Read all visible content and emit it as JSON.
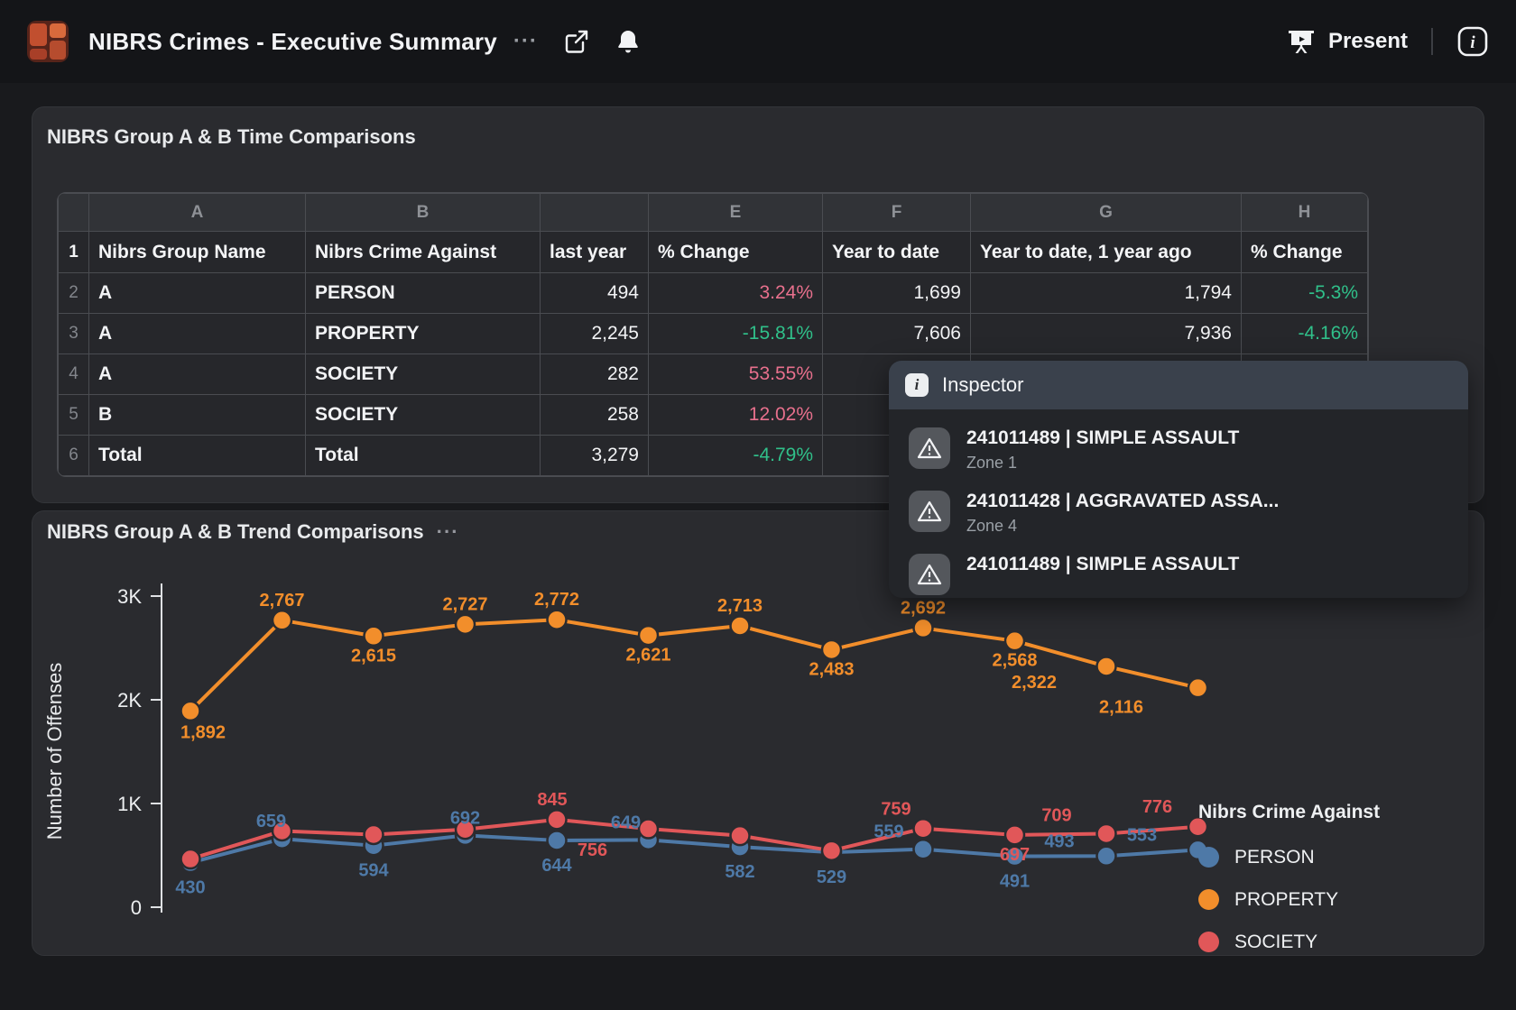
{
  "header": {
    "title": "NIBRS Crimes - Executive Summary",
    "title_menu": "···",
    "present_label": "Present"
  },
  "time_card": {
    "title": "NIBRS Group A & B Time Comparisons",
    "column_letters": [
      "",
      "A",
      "B",
      "",
      "E",
      "F",
      "G",
      "H"
    ],
    "header_row_num": "1",
    "headers": [
      "Nibrs Group Name",
      "Nibrs Crime Against",
      "last year",
      "% Change",
      "Year to date",
      "Year to date, 1 year ago",
      "% Change"
    ],
    "rows": [
      {
        "num": "2",
        "group": "A",
        "against": "PERSON",
        "last_year": "494",
        "pct_change_1": "3.24%",
        "ytd": "1,699",
        "ytd_prev": "1,794",
        "pct_change_2": "-5.3%"
      },
      {
        "num": "3",
        "group": "A",
        "against": "PROPERTY",
        "last_year": "2,245",
        "pct_change_1": "-15.81%",
        "ytd": "7,606",
        "ytd_prev": "7,936",
        "pct_change_2": "-4.16%"
      },
      {
        "num": "4",
        "group": "A",
        "against": "SOCIETY",
        "last_year": "282",
        "pct_change_1": "53.55%",
        "ytd": "",
        "ytd_prev": "",
        "pct_change_2": ""
      },
      {
        "num": "5",
        "group": "B",
        "against": "SOCIETY",
        "last_year": "258",
        "pct_change_1": "12.02%",
        "ytd": "",
        "ytd_prev": "",
        "pct_change_2": ""
      },
      {
        "num": "6",
        "group": "Total",
        "against": "Total",
        "last_year": "3,279",
        "pct_change_1": "-4.79%",
        "ytd": "",
        "ytd_prev": "",
        "pct_change_2": ""
      }
    ]
  },
  "inspector": {
    "title": "Inspector",
    "items": [
      {
        "title": "241011489 | SIMPLE ASSAULT",
        "subtitle": "Zone 1"
      },
      {
        "title": "241011428 | AGGRAVATED ASSA...",
        "subtitle": "Zone 4"
      },
      {
        "title": "241011489 | SIMPLE ASSAULT",
        "subtitle": ""
      }
    ]
  },
  "chart_data": {
    "type": "line",
    "title": "NIBRS Group A & B Trend Comparisons",
    "title_menu": "···",
    "ylabel": "Number of Offenses",
    "ylim": [
      0,
      3000
    ],
    "yticks": [
      {
        "value": 0,
        "label": "0"
      },
      {
        "value": 1000,
        "label": "1K"
      },
      {
        "value": 2000,
        "label": "2K"
      },
      {
        "value": 3000,
        "label": "3K"
      }
    ],
    "x_count": 12,
    "x_axis_labels_visible": false,
    "grid": false,
    "legend_title": "Nibrs Crime Against",
    "legend_position": "right-bottom",
    "series": [
      {
        "name": "PERSON",
        "color": "#4e79a7",
        "values": [
          430,
          659,
          594,
          692,
          644,
          649,
          582,
          529,
          559,
          491,
          493,
          553
        ],
        "labels": [
          "430",
          "659",
          "594",
          "692",
          "644",
          "649",
          "582",
          "529",
          "559",
          "491",
          "493",
          "553"
        ]
      },
      {
        "name": "PROPERTY",
        "color": "#f28e2b",
        "values": [
          1892,
          2767,
          2615,
          2727,
          2772,
          2621,
          2713,
          2483,
          2692,
          2568,
          2322,
          2116
        ],
        "labels": [
          "1,892",
          "2,767",
          "2,615",
          "2,727",
          "2,772",
          "2,621",
          "2,713",
          "2,483",
          "2,692",
          "2,568",
          "2,322",
          "2,116"
        ]
      },
      {
        "name": "SOCIETY",
        "color": "#e15759",
        "values": [
          465,
          735,
          700,
          750,
          845,
          756,
          690,
          545,
          759,
          697,
          709,
          776
        ],
        "labels": [
          null,
          null,
          null,
          null,
          "845",
          "756",
          null,
          null,
          "759",
          "697",
          "709",
          "776"
        ],
        "note": "unlabeled point values estimated from plot position"
      }
    ]
  },
  "colors": {
    "positive_change": "#e8708d",
    "negative_change": "#30c08a",
    "series_person": "#4e79a7",
    "series_property": "#f28e2b",
    "series_society": "#e15759",
    "card_background": "#2a2b2f",
    "page_background": "#191a1d"
  }
}
